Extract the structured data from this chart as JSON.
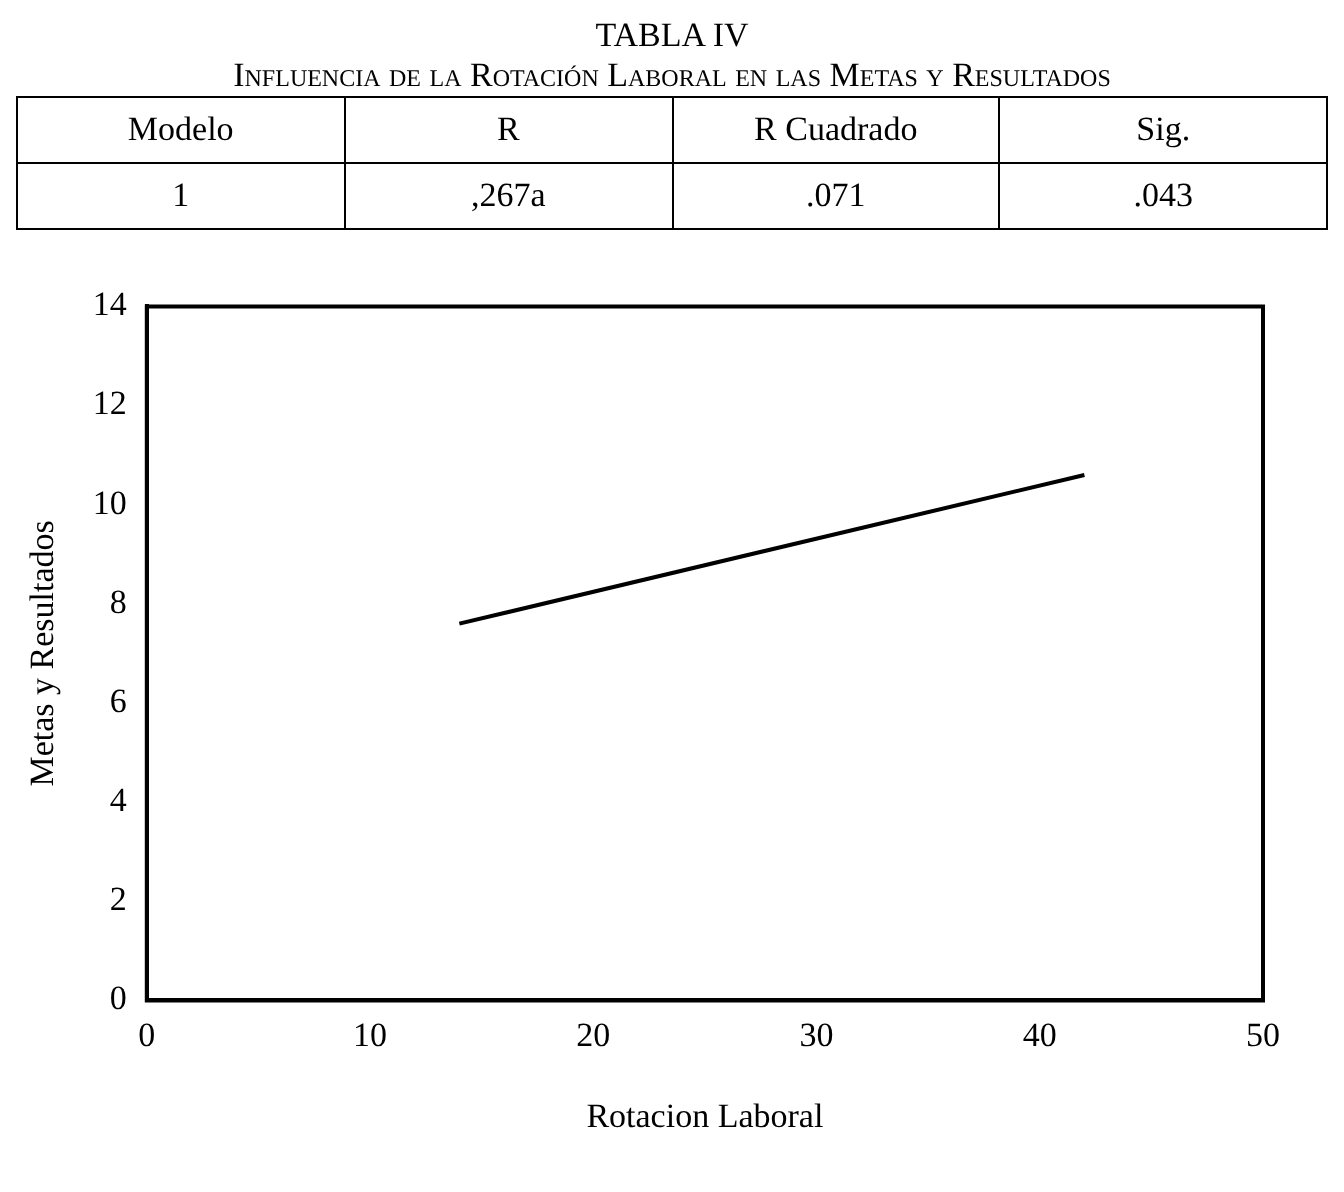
{
  "chart_data": {
    "type": "line",
    "title": "TABLA IV",
    "subtitle": "Influencia de la Rotación Laboral en las Metas y Resultados",
    "annotations": [
      "Modelo",
      "R",
      "R Cuadrado",
      "Sig.",
      "1",
      ",267a",
      ".071",
      ".043"
    ],
    "xlabel": "Rotacion Laboral",
    "ylabel": "Metas y Resultados",
    "series": [
      {
        "x": [
          14,
          42
        ],
        "values": [
          7.6,
          10.6
        ],
        "color": "#000000"
      }
    ],
    "xlim": [
      0,
      50
    ],
    "xticks": [
      0,
      10,
      20,
      30,
      40,
      50
    ],
    "ylim": [
      0,
      14
    ],
    "yticks": [
      0,
      2,
      4,
      6,
      8,
      10,
      12,
      14
    ],
    "grid": false,
    "legend": false,
    "marker": "none",
    "line_style": "solid"
  }
}
